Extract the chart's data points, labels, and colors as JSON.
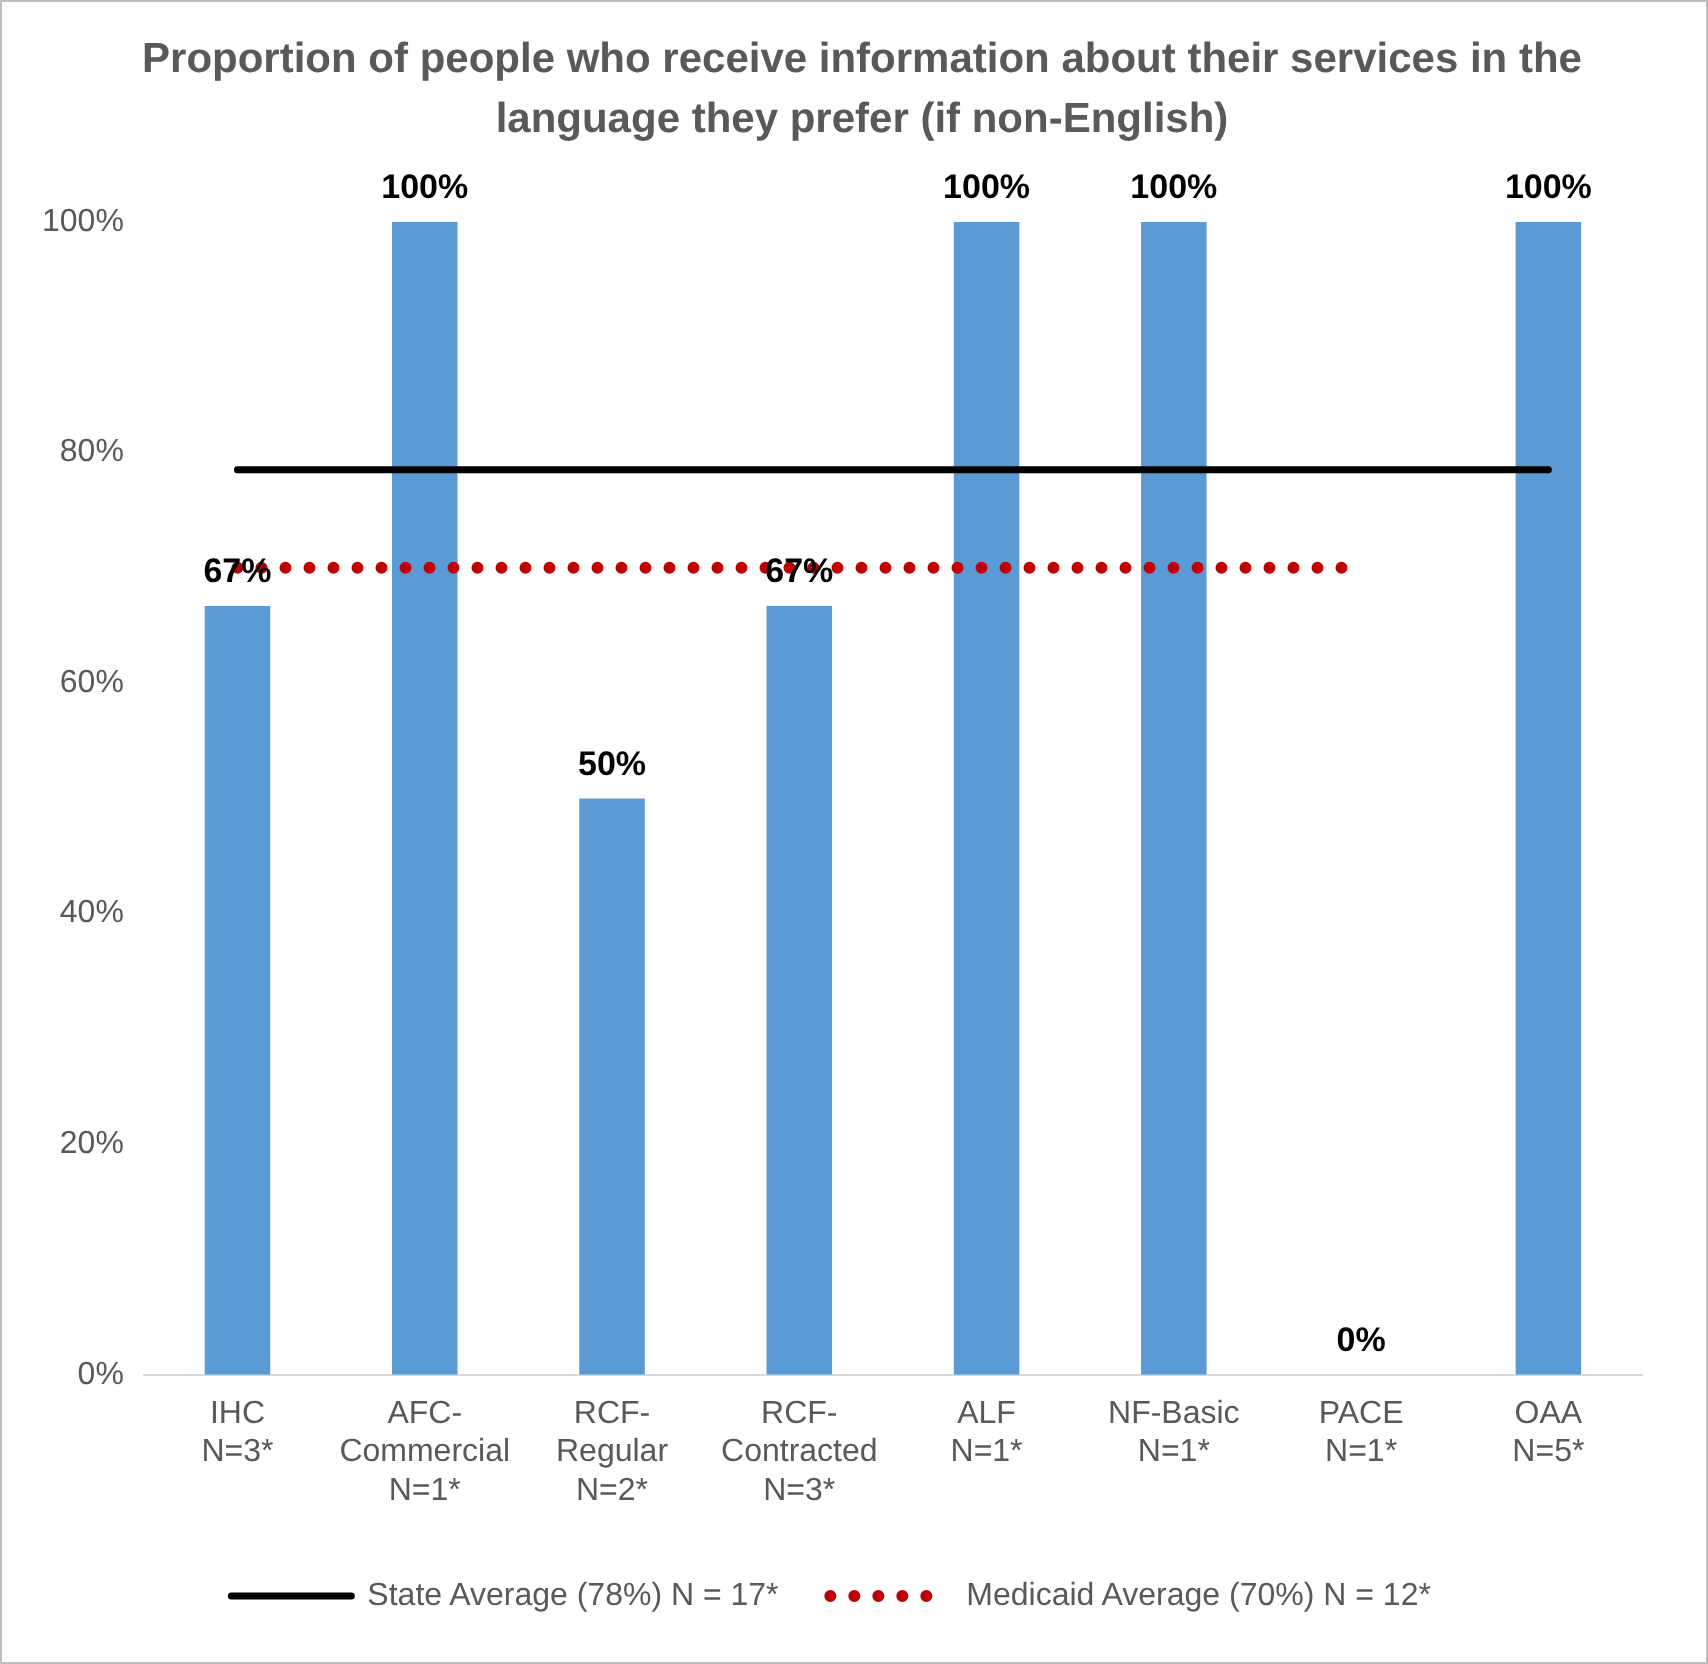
{
  "chart_data": {
    "type": "bar",
    "title": "Proportion of people who receive information about their services in the language they prefer (if non-English)",
    "categories": [
      "IHC\nN=3*",
      "AFC-\nCommercial\nN=1*",
      "RCF-\nRegular\nN=2*",
      "RCF-\nContracted\nN=3*",
      "ALF\nN=1*",
      "NF-Basic\nN=1*",
      "PACE\nN=1*",
      "OAA\nN=5*"
    ],
    "series": [
      {
        "color": "#5b9bd5",
        "values": [
          66.7,
          100,
          50,
          66.7,
          100,
          100,
          0,
          100
        ],
        "value_labels": [
          "67%",
          "100%",
          "50%",
          "67%",
          "100%",
          "100%",
          "0%",
          "100%"
        ]
      },
      {
        "type": "line",
        "name": "State Average (78%) N = 17*",
        "color": "#000000",
        "line_style": "solid",
        "values": [
          78.5,
          78.5,
          78.5,
          78.5,
          78.5,
          78.5,
          78.5,
          78.5
        ]
      },
      {
        "type": "line",
        "name": "Medicaid Average (70%) N = 12*",
        "color": "#c00000",
        "line_style": "dotted",
        "values": [
          70,
          70,
          70,
          70,
          70,
          70,
          70,
          null
        ]
      }
    ],
    "ylim": [
      0,
      100
    ],
    "yticks": [
      {
        "value": 0,
        "label": "0%"
      },
      {
        "value": 20,
        "label": "20%"
      },
      {
        "value": 40,
        "label": "40%"
      },
      {
        "value": 60,
        "label": "60%"
      },
      {
        "value": 80,
        "label": "80%"
      },
      {
        "value": 100,
        "label": "100%"
      }
    ],
    "grid": false,
    "legend": "bottom",
    "marker": "none"
  }
}
